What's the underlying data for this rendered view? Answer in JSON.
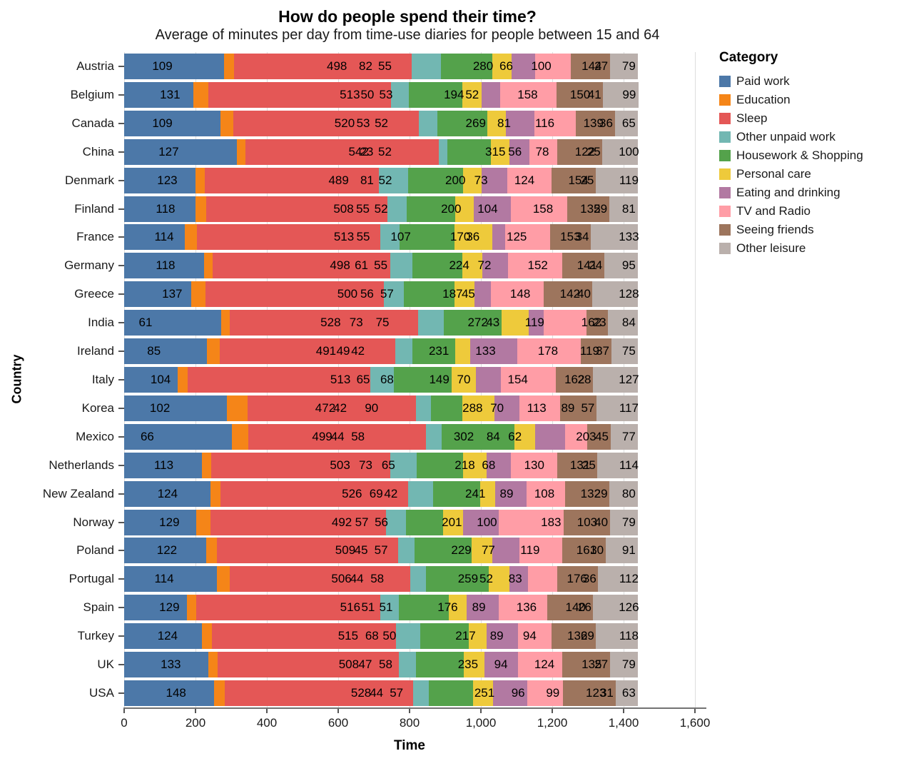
{
  "chart_data": {
    "type": "bar",
    "orientation": "horizontal",
    "stacked": true,
    "title": "How do people spend their time?",
    "subtitle": "Average of minutes per day from time-use diaries for people between 15 and 64",
    "xlabel": "Time",
    "ylabel": "Country",
    "legend_title": "Category",
    "xlim": [
      0,
      1600
    ],
    "grid": true,
    "legend_position": "right",
    "x_ticks": [
      {
        "value": 0,
        "label": "0"
      },
      {
        "value": 200,
        "label": "200"
      },
      {
        "value": 400,
        "label": "400"
      },
      {
        "value": 600,
        "label": "600"
      },
      {
        "value": 800,
        "label": "800"
      },
      {
        "value": 1000,
        "label": "1,000"
      },
      {
        "value": 1200,
        "label": "1,200"
      },
      {
        "value": 1400,
        "label": "1,400"
      },
      {
        "value": 1600,
        "label": "1,600"
      }
    ],
    "categories": [
      {
        "name": "Paid work",
        "color": "#4c78a8"
      },
      {
        "name": "Education",
        "color": "#f58518"
      },
      {
        "name": "Sleep",
        "color": "#e45756"
      },
      {
        "name": "Other unpaid work",
        "color": "#72b7b2"
      },
      {
        "name": "Housework & Shopping",
        "color": "#54a24b"
      },
      {
        "name": "Personal care",
        "color": "#eeca3b"
      },
      {
        "name": "Eating and drinking",
        "color": "#b279a2"
      },
      {
        "name": "TV and Radio",
        "color": "#ff9da6"
      },
      {
        "name": "Seeing friends",
        "color": "#9d755d"
      },
      {
        "name": "Other leisure",
        "color": "#bab0ac"
      }
    ],
    "category_value_from_label_index": [
      4,
      8,
      1,
      2,
      7,
      3,
      5,
      6,
      0,
      9
    ],
    "rows": [
      {
        "country": "Austria",
        "labels": [
          109,
          498,
          82,
          55,
          280,
          66,
          100,
          144,
          27,
          79
        ]
      },
      {
        "country": "Belgium",
        "labels": [
          131,
          513,
          50,
          53,
          194,
          52,
          158,
          150,
          41,
          99
        ]
      },
      {
        "country": "Canada",
        "labels": [
          109,
          520,
          53,
          52,
          269,
          81,
          116,
          139,
          36,
          65
        ]
      },
      {
        "country": "China",
        "labels": [
          127,
          542,
          23,
          52,
          315,
          56,
          78,
          122,
          25,
          100
        ]
      },
      {
        "country": "Denmark",
        "labels": [
          123,
          489,
          81,
          52,
          200,
          73,
          124,
          154,
          25,
          119
        ]
      },
      {
        "country": "Finland",
        "labels": [
          118,
          508,
          55,
          52,
          200,
          104,
          158,
          135,
          29,
          81
        ]
      },
      {
        "country": "France",
        "labels": [
          114,
          513,
          55,
          107,
          170,
          36,
          125,
          153,
          34,
          133
        ]
      },
      {
        "country": "Germany",
        "labels": [
          118,
          498,
          61,
          55,
          224,
          72,
          152,
          141,
          24,
          95
        ]
      },
      {
        "country": "Greece",
        "labels": [
          137,
          500,
          56,
          57,
          187,
          45,
          148,
          142,
          40,
          128
        ]
      },
      {
        "country": "India",
        "labels": [
          61,
          528,
          73,
          75,
          272,
          43,
          119,
          162,
          23,
          84
        ]
      },
      {
        "country": "Ireland",
        "labels": [
          85,
          491,
          49,
          42,
          231,
          133,
          178,
          119,
          37,
          75
        ]
      },
      {
        "country": "Italy",
        "labels": [
          104,
          513,
          65,
          68,
          149,
          70,
          154,
          162,
          28,
          127
        ]
      },
      {
        "country": "Korea",
        "labels": [
          102,
          472,
          42,
          90,
          288,
          70,
          113,
          89,
          57,
          117
        ]
      },
      {
        "country": "Mexico",
        "labels": [
          66,
          499,
          44,
          58,
          302,
          84,
          62,
          203,
          45,
          77
        ]
      },
      {
        "country": "Netherlands",
        "labels": [
          113,
          503,
          73,
          65,
          218,
          68,
          130,
          131,
          25,
          114
        ]
      },
      {
        "country": "New Zealand",
        "labels": [
          124,
          526,
          69,
          42,
          241,
          89,
          108,
          132,
          29,
          80
        ]
      },
      {
        "country": "Norway",
        "labels": [
          129,
          492,
          57,
          56,
          201,
          100,
          183,
          103,
          40,
          79
        ]
      },
      {
        "country": "Poland",
        "labels": [
          122,
          509,
          45,
          57,
          229,
          77,
          119,
          161,
          30,
          91
        ]
      },
      {
        "country": "Portugal",
        "labels": [
          114,
          506,
          44,
          58,
          259,
          52,
          83,
          176,
          36,
          112
        ]
      },
      {
        "country": "Spain",
        "labels": [
          129,
          516,
          51,
          51,
          176,
          89,
          136,
          140,
          26,
          126
        ]
      },
      {
        "country": "Turkey",
        "labels": [
          124,
          515,
          68,
          50,
          217,
          89,
          94,
          136,
          29,
          118
        ]
      },
      {
        "country": "UK",
        "labels": [
          133,
          508,
          47,
          58,
          235,
          94,
          124,
          135,
          27,
          79
        ]
      },
      {
        "country": "USA",
        "labels": [
          148,
          528,
          44,
          57,
          251,
          96,
          99,
          123,
          31,
          63
        ]
      }
    ]
  }
}
